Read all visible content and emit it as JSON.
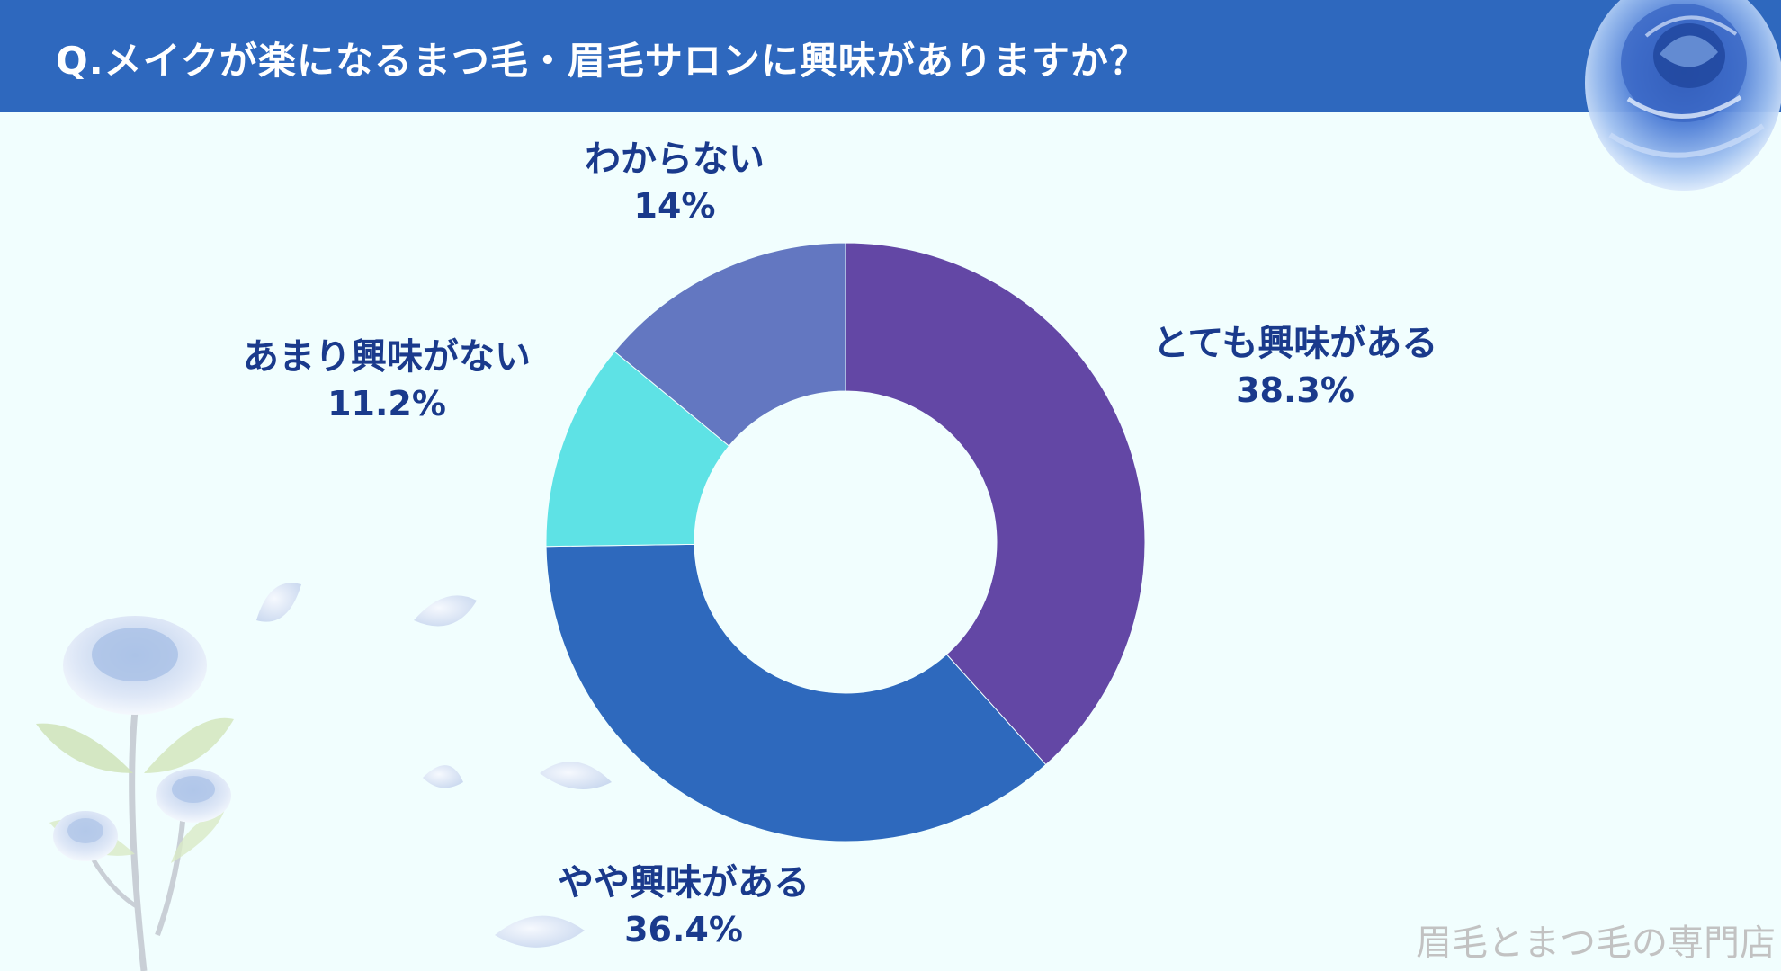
{
  "header": {
    "title": "Q.メイクが楽になるまつ毛・眉毛サロンに興味がありますか？"
  },
  "chart_data": {
    "type": "pie",
    "style": "donut",
    "start_angle_deg": 0,
    "direction": "clockwise",
    "slices": [
      {
        "label": "とても興味がある",
        "value": 38.3,
        "value_text": "38.3%",
        "color": "#6347a5"
      },
      {
        "label": "やや興味がある",
        "value": 36.4,
        "value_text": "36.4%",
        "color": "#2e69bd"
      },
      {
        "label": "あまり興味がない",
        "value": 11.2,
        "value_text": "11.2%",
        "color": "#5ee2e5"
      },
      {
        "label": "わからない",
        "value": 14,
        "value_text": "14%",
        "color": "#6377c1"
      }
    ]
  },
  "watermark": "眉毛とまつ毛の専門店",
  "colors": {
    "header_bg": "#2e68be",
    "page_bg": "#f1fefe",
    "label_text": "#1a3a8c",
    "hole": "#f1fefe"
  },
  "decorations": [
    {
      "name": "blue-rose-illustration",
      "position": "top-right"
    },
    {
      "name": "blue-rose-stem-illustration",
      "position": "bottom-left"
    },
    {
      "name": "floating-petals",
      "position": "bottom-left"
    }
  ]
}
